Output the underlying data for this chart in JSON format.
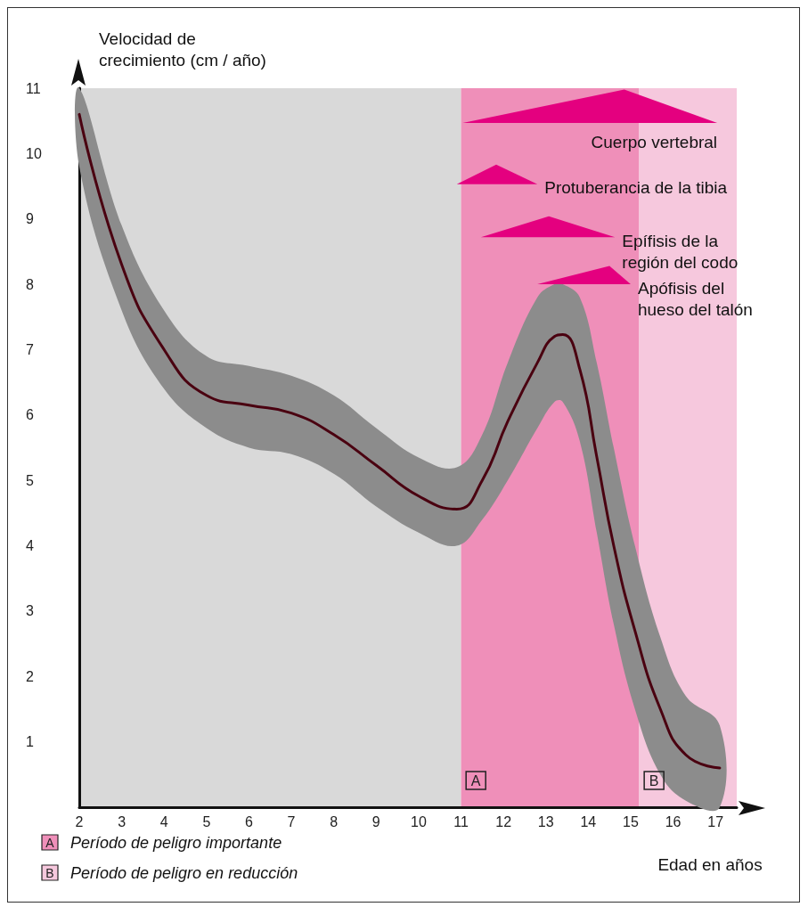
{
  "chart_data": {
    "type": "line",
    "xlabel": "Edad en años",
    "ylabel": "Velocidad de crecimiento (cm / año)",
    "xlim": [
      2,
      17.5
    ],
    "xticks": [
      2,
      3,
      4,
      5,
      6,
      7,
      8,
      9,
      10,
      11,
      12,
      13,
      14,
      15,
      16,
      17
    ],
    "ylim": [
      0,
      11
    ],
    "yticks": [
      1,
      2,
      3,
      4,
      5,
      6,
      7,
      8,
      9,
      10,
      11
    ],
    "grid": false,
    "legend": "bottom",
    "marker": "none",
    "line_style": "solid",
    "bands": [
      {
        "axis": "x",
        "from": 2,
        "to": 11,
        "label": null,
        "color": "#d9d9d9"
      },
      {
        "axis": "x",
        "from": 11,
        "to": 15.2,
        "label": "A",
        "color": "#ef8fb9"
      },
      {
        "axis": "x",
        "from": 15.2,
        "to": 17.5,
        "label": "B",
        "color": "#f6c8dd"
      }
    ],
    "series": [
      {
        "color": "#4a0010",
        "x": [
          2,
          3,
          4,
          5,
          6,
          7,
          8,
          9,
          10,
          10.9,
          11.5,
          12.1,
          12.8,
          13.2,
          13.4,
          13.8,
          14.2,
          14.6,
          15.1,
          15.7,
          16.3,
          17.1
        ],
        "values": [
          10.6,
          8.3,
          7.0,
          6.3,
          6.15,
          6.03,
          5.7,
          5.23,
          4.76,
          4.56,
          5.0,
          5.9,
          6.8,
          7.2,
          7.23,
          6.7,
          5.36,
          4.0,
          2.7,
          1.5,
          0.8,
          0.6
        ],
        "upper": [
          11.0,
          8.9,
          7.6,
          6.9,
          6.75,
          6.6,
          6.3,
          5.8,
          5.35,
          5.2,
          5.7,
          6.8,
          7.8,
          8.0,
          8.0,
          7.8,
          6.8,
          5.5,
          4.0,
          2.6,
          1.7,
          1.25
        ],
        "lower": [
          9.8,
          7.6,
          6.4,
          5.8,
          5.5,
          5.4,
          5.1,
          4.6,
          4.2,
          4.0,
          4.4,
          5.0,
          5.8,
          6.2,
          6.2,
          5.6,
          4.2,
          2.8,
          1.5,
          0.5,
          0.1,
          0.0
        ]
      },
      {
        "type": "area",
        "color": "#e4007f",
        "x": [
          11.04,
          14.85,
          17.04
        ],
        "values": [
          10.47,
          10.98,
          10.47
        ]
      },
      {
        "type": "area",
        "color": "#e4007f",
        "x": [
          10.9,
          11.83,
          12.8
        ],
        "values": [
          9.53,
          9.83,
          9.53
        ]
      },
      {
        "type": "area",
        "color": "#e4007f",
        "x": [
          11.47,
          13.07,
          14.63
        ],
        "values": [
          8.72,
          9.04,
          8.72
        ]
      },
      {
        "type": "area",
        "color": "#e4007f",
        "x": [
          12.8,
          14.5,
          15.0
        ],
        "values": [
          8.0,
          8.28,
          8.0
        ]
      }
    ],
    "annotations": [
      "Cuerpo vertebral",
      "Protuberancia de la tibia",
      "Epífisis de la\nregión del codo",
      "Apófisis del\nhueso del talón",
      "Período de peligro importante",
      "Período de peligro en reducción"
    ]
  }
}
